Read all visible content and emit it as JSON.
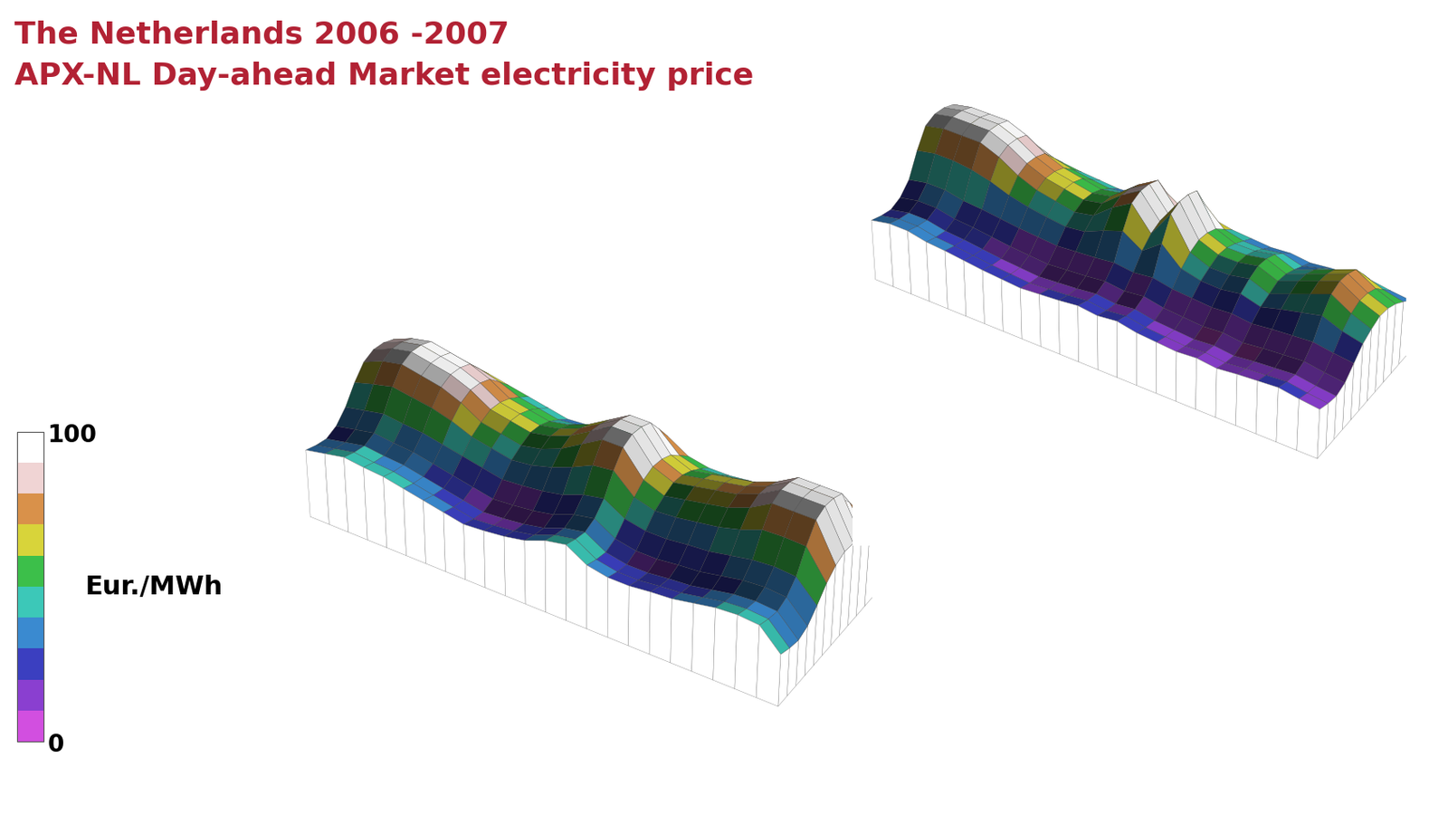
{
  "title": "The Netherlands 2006 -2007",
  "subtitle": "APX-NL Day-ahead Market electricity price",
  "colorbar": {
    "range": [
      0,
      100
    ],
    "ticks": [
      0,
      100
    ],
    "label": "Eur./MWh",
    "colors": [
      "#d24fe0",
      "#8a3fd0",
      "#3b3fc0",
      "#3a8ad0",
      "#3cc8b8",
      "#3cbf4a",
      "#d8d43a",
      "#d9914a",
      "#f0d4d4",
      "#ffffff"
    ]
  },
  "chart_data": [
    {
      "type": "surface",
      "tick_labels": false,
      "zlim": [
        -50,
        100
      ],
      "cells": [
        [
          35,
          30,
          27,
          32,
          45,
          65,
          80,
          85,
          83,
          77,
          60,
          43
        ],
        [
          40,
          35,
          32,
          37,
          50,
          72,
          90,
          95,
          93,
          87,
          68,
          48
        ],
        [
          45,
          40,
          37,
          42,
          55,
          78,
          95,
          100,
          98,
          92,
          73,
          53
        ],
        [
          42,
          37,
          34,
          39,
          52,
          74,
          90,
          95,
          93,
          87,
          69,
          50
        ],
        [
          40,
          35,
          32,
          37,
          50,
          70,
          85,
          90,
          88,
          82,
          65,
          48
        ],
        [
          35,
          30,
          27,
          32,
          45,
          63,
          75,
          80,
          78,
          72,
          58,
          43
        ],
        [
          30,
          25,
          22,
          27,
          40,
          53,
          60,
          65,
          63,
          57,
          48,
          38
        ],
        [
          25,
          20,
          17,
          22,
          35,
          48,
          55,
          60,
          58,
          52,
          43,
          33
        ],
        [
          20,
          15,
          12,
          17,
          30,
          43,
          50,
          55,
          53,
          47,
          38,
          28
        ],
        [
          22,
          17,
          14,
          19,
          32,
          46,
          55,
          60,
          58,
          52,
          41,
          30
        ],
        [
          25,
          20,
          17,
          22,
          35,
          53,
          65,
          70,
          68,
          62,
          48,
          33
        ],
        [
          30,
          25,
          22,
          27,
          40,
          63,
          80,
          85,
          83,
          77,
          58,
          38
        ],
        [
          40,
          35,
          32,
          37,
          50,
          75,
          95,
          100,
          98,
          92,
          70,
          48
        ],
        [
          45,
          40,
          37,
          42,
          55,
          78,
          95,
          100,
          98,
          92,
          73,
          53
        ],
        [
          30,
          25,
          22,
          27,
          40,
          55,
          65,
          70,
          68,
          62,
          50,
          38
        ],
        [
          25,
          20,
          17,
          22,
          35,
          48,
          55,
          60,
          58,
          52,
          43,
          33
        ],
        [
          25,
          20,
          17,
          22,
          35,
          50,
          60,
          65,
          63,
          57,
          45,
          33
        ],
        [
          28,
          23,
          20,
          25,
          38,
          54,
          65,
          70,
          68,
          62,
          49,
          36
        ],
        [
          30,
          25,
          22,
          27,
          40,
          58,
          70,
          75,
          73,
          67,
          53,
          38
        ],
        [
          35,
          30,
          27,
          32,
          45,
          65,
          80,
          85,
          83,
          77,
          60,
          43
        ],
        [
          40,
          35,
          32,
          37,
          50,
          75,
          95,
          100,
          98,
          92,
          70,
          48
        ],
        [
          42,
          37,
          34,
          39,
          52,
          76,
          95,
          100,
          98,
          92,
          71,
          50
        ],
        [
          40,
          35,
          32,
          37,
          50,
          75,
          95,
          100,
          98,
          92,
          70,
          48
        ],
        [
          15,
          10,
          7,
          12,
          25,
          40,
          50,
          55,
          53,
          47,
          35,
          23
        ]
      ]
    },
    {
      "type": "surface",
      "tick_labels": false,
      "zlim": [
        -50,
        100
      ],
      "cells": [
        [
          30,
          25,
          22,
          27,
          40,
          68,
          90,
          95,
          93,
          87,
          63,
          38
        ],
        [
          35,
          30,
          27,
          32,
          45,
          73,
          95,
          100,
          98,
          92,
          68,
          43
        ],
        [
          35,
          30,
          27,
          32,
          45,
          73,
          95,
          100,
          98,
          92,
          68,
          43
        ],
        [
          30,
          25,
          22,
          27,
          40,
          70,
          95,
          100,
          98,
          92,
          65,
          38
        ],
        [
          28,
          23,
          20,
          25,
          38,
          64,
          85,
          90,
          88,
          82,
          59,
          36
        ],
        [
          25,
          20,
          17,
          22,
          35,
          55,
          70,
          75,
          73,
          67,
          50,
          33
        ],
        [
          22,
          17,
          14,
          19,
          32,
          49,
          60,
          65,
          63,
          57,
          44,
          30
        ],
        [
          20,
          15,
          12,
          17,
          30,
          45,
          55,
          60,
          58,
          52,
          40,
          28
        ],
        [
          18,
          13,
          10,
          15,
          28,
          42,
          50,
          55,
          53,
          47,
          37,
          26
        ],
        [
          20,
          15,
          12,
          17,
          30,
          45,
          55,
          60,
          58,
          52,
          40,
          28
        ],
        [
          22,
          17,
          14,
          19,
          32,
          56,
          75,
          80,
          78,
          72,
          51,
          30
        ],
        [
          25,
          20,
          17,
          22,
          35,
          65,
          90,
          95,
          93,
          87,
          60,
          33
        ],
        [
          22,
          17,
          14,
          19,
          32,
          49,
          60,
          65,
          63,
          57,
          44,
          30
        ],
        [
          25,
          20,
          17,
          22,
          35,
          68,
          95,
          100,
          98,
          92,
          63,
          33
        ],
        [
          20,
          15,
          12,
          17,
          30,
          45,
          55,
          60,
          58,
          52,
          40,
          28
        ],
        [
          18,
          13,
          10,
          15,
          28,
          39,
          45,
          50,
          48,
          42,
          34,
          26
        ],
        [
          16,
          11,
          8,
          13,
          26,
          38,
          45,
          50,
          48,
          42,
          33,
          24
        ],
        [
          18,
          13,
          10,
          15,
          28,
          42,
          50,
          55,
          53,
          47,
          37,
          26
        ],
        [
          15,
          10,
          7,
          12,
          25,
          35,
          40,
          45,
          43,
          37,
          30,
          23
        ],
        [
          18,
          13,
          10,
          15,
          28,
          42,
          50,
          55,
          53,
          47,
          37,
          26
        ],
        [
          20,
          15,
          12,
          17,
          30,
          48,
          60,
          65,
          63,
          57,
          43,
          28
        ],
        [
          22,
          17,
          14,
          19,
          32,
          54,
          70,
          75,
          73,
          67,
          49,
          30
        ],
        [
          18,
          13,
          10,
          15,
          28,
          44,
          55,
          60,
          58,
          52,
          39,
          26
        ],
        [
          15,
          10,
          7,
          12,
          25,
          38,
          45,
          50,
          48,
          42,
          33,
          23
        ]
      ]
    }
  ]
}
